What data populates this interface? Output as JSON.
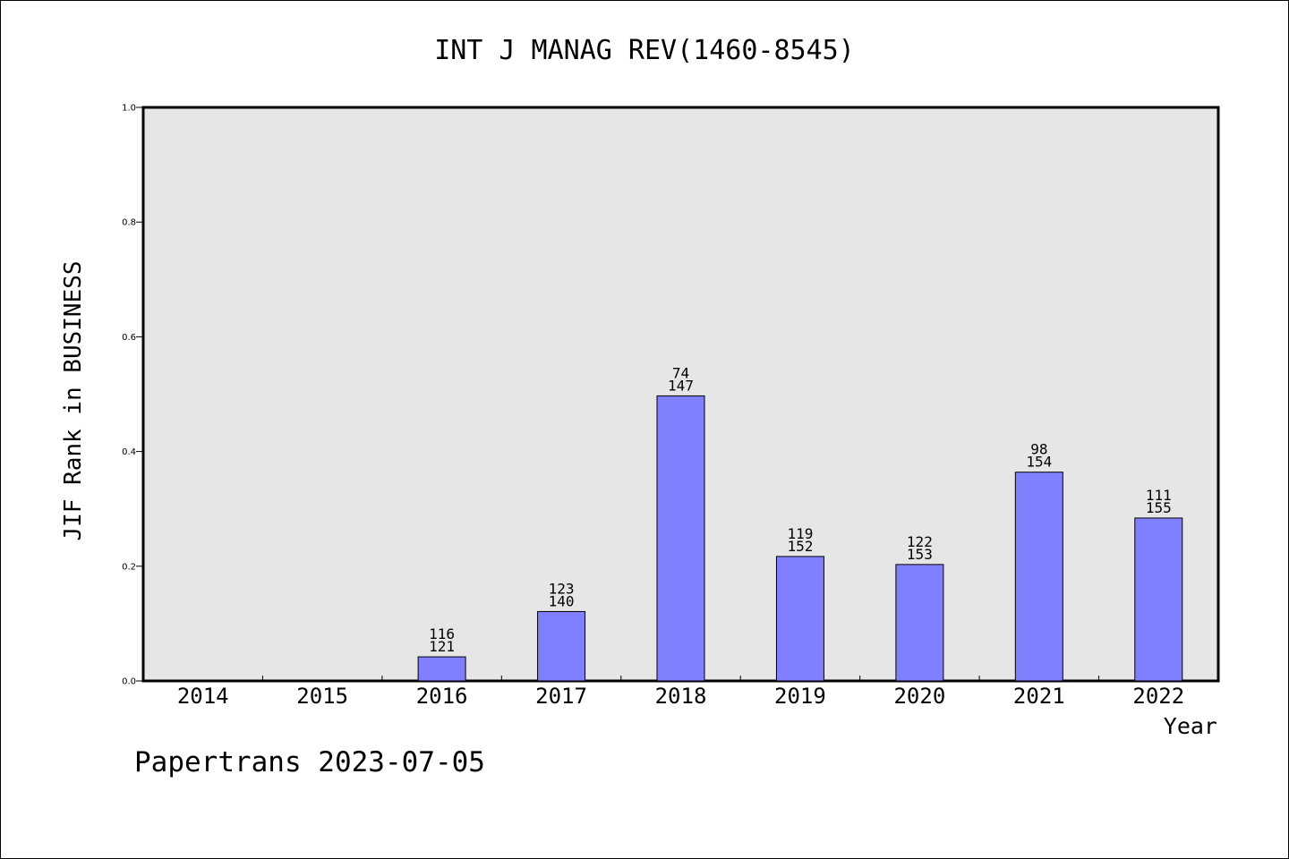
{
  "chart_data": {
    "type": "bar",
    "title": "INT J MANAG REV(1460-8545)",
    "xlabel": "Year",
    "ylabel": "JIF Rank in BUSINESS",
    "ylim": [
      0,
      1.0
    ],
    "yticks": [
      "0.0",
      "0.2",
      "0.4",
      "0.6",
      "0.8",
      "1.0"
    ],
    "categories": [
      "2014",
      "2015",
      "2016",
      "2017",
      "2018",
      "2019",
      "2020",
      "2021",
      "2022"
    ],
    "values": [
      null,
      null,
      0.042,
      0.121,
      0.497,
      0.217,
      0.203,
      0.364,
      0.284
    ],
    "bar_labels": [
      null,
      null,
      [
        "116",
        "121"
      ],
      [
        "123",
        "140"
      ],
      [
        "74",
        "147"
      ],
      [
        "119",
        "152"
      ],
      [
        "122",
        "153"
      ],
      [
        "98",
        "154"
      ],
      [
        "111",
        "155"
      ]
    ],
    "grid": false,
    "legend": "none",
    "colors": {
      "bar": "#8080ff",
      "plot_background": "#e6e6e6"
    }
  },
  "footer": {
    "watermark": "Papertrans 2023-07-05"
  }
}
